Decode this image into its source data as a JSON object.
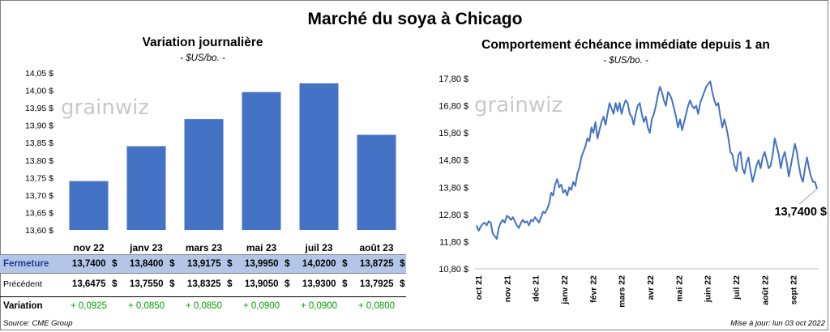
{
  "title": "Marché du soya à Chicago",
  "left": {
    "title": "Variation  journalière",
    "unit": "- $US/bo. -",
    "watermark": "grainwiz"
  },
  "right": {
    "title": "Comportement  échéance immédiate depuis 1 an",
    "unit": "- $US/bo. -",
    "watermark": "grainwiz",
    "last_value_label": "13,7400 $"
  },
  "table": {
    "currency": "$",
    "rows": [
      {
        "label": "Fermeture",
        "values": [
          "13,7400",
          "13,8400",
          "13,9175",
          "13,9950",
          "14,0200",
          "13,8725"
        ]
      },
      {
        "label": "Précédent",
        "values": [
          "13,6475",
          "13,7550",
          "13,8325",
          "13,9050",
          "13,9300",
          "13,7925"
        ]
      },
      {
        "label": "Variation",
        "values": [
          "+ 0,0925",
          "+ 0,0850",
          "+ 0,0850",
          "+ 0,0900",
          "+ 0,0900",
          "+ 0,0800"
        ]
      }
    ]
  },
  "footer": {
    "source": "Source: CME Group",
    "updated": "Mise à jour: lun 03 oct 2022"
  },
  "colors": {
    "bar": "#4472c4",
    "line": "#4472c4",
    "fermeture_bg": "#b4c6e7",
    "variation_text": "#00a000"
  },
  "chart_data": [
    {
      "type": "bar",
      "categories": [
        "nov 22",
        "janv 23",
        "mars 23",
        "mai 23",
        "juil 23",
        "août 23"
      ],
      "values": [
        13.74,
        13.84,
        13.9175,
        13.995,
        14.02,
        13.8725
      ],
      "ylim": [
        13.6,
        14.05
      ],
      "yticks": [
        "13,60 $",
        "13,65 $",
        "13,70 $",
        "13,75 $",
        "13,80 $",
        "13,85 $",
        "13,90 $",
        "13,95 $",
        "14,00 $",
        "14,05 $"
      ],
      "title": "Variation  journalière",
      "ylabel": "- $US/bo. -"
    },
    {
      "type": "line",
      "title": "Comportement  échéance immédiate depuis 1 an",
      "ylabel": "- $US/bo. -",
      "ylim": [
        10.8,
        17.8
      ],
      "yticks": [
        "10,80 $",
        "11,80 $",
        "12,80 $",
        "13,80 $",
        "14,80 $",
        "15,80 $",
        "16,80 $",
        "17,80 $"
      ],
      "xticks": [
        "oct 21",
        "nov 21",
        "déc 21",
        "janv 22",
        "févr 22",
        "mars 22",
        "avr 22",
        "mai 22",
        "juin 22",
        "juil 22",
        "août 22",
        "sept 22"
      ],
      "series": [
        {
          "values": [
            12.4,
            12.2,
            12.35,
            12.45,
            12.5,
            12.4,
            12.55,
            12.5,
            12.1,
            12.0,
            11.9,
            12.3,
            12.5,
            12.6,
            12.5,
            12.75,
            12.7,
            12.6,
            12.7,
            12.55,
            12.4,
            12.3,
            12.5,
            12.6,
            12.5,
            12.55,
            12.4,
            12.6,
            12.55,
            12.7,
            12.6,
            12.5,
            12.7,
            12.9,
            12.85,
            13.0,
            13.2,
            13.6,
            13.5,
            13.9,
            14.1,
            13.8,
            13.9,
            13.6,
            13.7,
            13.5,
            13.8,
            13.7,
            14.0,
            13.85,
            14.3,
            14.5,
            14.9,
            15.1,
            15.3,
            15.6,
            15.5,
            16.0,
            15.8,
            16.2,
            15.6,
            15.9,
            16.2,
            16.4,
            16.1,
            16.5,
            16.9,
            16.7,
            16.5,
            16.9,
            16.6,
            16.9,
            16.5,
            16.8,
            17.0,
            16.9,
            16.5,
            16.4,
            16.1,
            16.5,
            16.8,
            16.9,
            16.5,
            16.2,
            16.4,
            16.0,
            15.8,
            16.3,
            16.5,
            16.8,
            17.2,
            17.5,
            17.3,
            17.0,
            16.8,
            17.3,
            17.2,
            17.0,
            16.7,
            16.4,
            16.0,
            16.3,
            15.9,
            16.2,
            16.5,
            16.8,
            17.0,
            16.8,
            16.7,
            16.8,
            16.5,
            16.9,
            17.1,
            17.3,
            17.5,
            17.6,
            17.7,
            17.3,
            17.0,
            16.8,
            16.9,
            16.4,
            16.0,
            16.3,
            16.0,
            15.6,
            15.1,
            15.0,
            14.6,
            14.4,
            15.0,
            15.1,
            14.5,
            14.3,
            14.7,
            14.9,
            14.4,
            14.0,
            14.3,
            14.6,
            14.8,
            14.5,
            14.9,
            15.1,
            14.8,
            14.5,
            14.6,
            15.0,
            15.6,
            15.3,
            15.0,
            14.5,
            14.9,
            15.1,
            14.7,
            14.2,
            14.6,
            15.0,
            15.4,
            15.1,
            14.6,
            14.2,
            14.0,
            14.5,
            14.9,
            14.5,
            14.2,
            14.0,
            14.0,
            13.74
          ]
        }
      ],
      "last_value": 13.74
    }
  ]
}
